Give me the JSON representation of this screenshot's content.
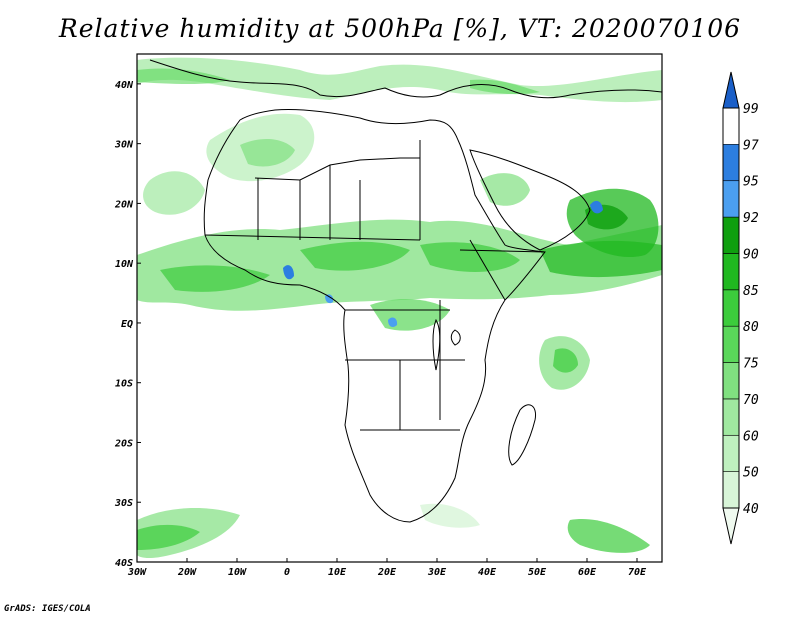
{
  "title": "Relative humidity at 500hPa [%], VT: 2020070106",
  "credit": "GrADS: IGES/COLA",
  "map": {
    "lon_range": [
      -30,
      75
    ],
    "lat_range": [
      -40,
      45
    ],
    "lon_ticks": [
      "30W",
      "20W",
      "10W",
      "0",
      "10E",
      "20E",
      "30E",
      "40E",
      "50E",
      "60E",
      "70E"
    ],
    "lat_ticks": [
      "40N",
      "30N",
      "20N",
      "10N",
      "EQ",
      "10S",
      "20S",
      "30S",
      "40S"
    ]
  },
  "colorbar": {
    "levels": [
      "40",
      "50",
      "60",
      "70",
      "75",
      "80",
      "85",
      "90",
      "92",
      "95",
      "97",
      "99"
    ],
    "colors": [
      "#f0faf0",
      "#d8f5d8",
      "#bff0bf",
      "#a0e8a0",
      "#80e080",
      "#5ad75a",
      "#3ccc3c",
      "#20b820",
      "#0f9f0f",
      "#4b9ff0",
      "#2c7ee0",
      "#1a5fc8"
    ]
  }
}
